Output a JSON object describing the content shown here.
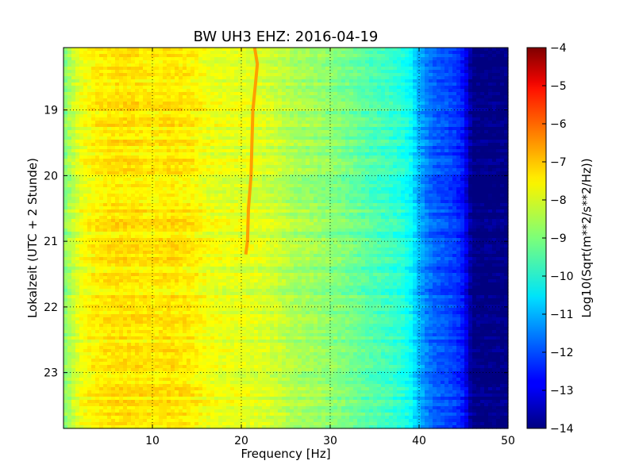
{
  "chart_data": {
    "type": "heatmap",
    "title": "BW UH3 EHZ: 2016-04-19",
    "xlabel": "Frequency [Hz]",
    "ylabel": "Lokalzeit (UTC + 2 Stunde)",
    "xlim": [
      0,
      50
    ],
    "ylim": [
      18.05,
      23.85
    ],
    "x_ticks": [
      10,
      20,
      30,
      40,
      50
    ],
    "x_tick_labels": [
      "10",
      "20",
      "30",
      "40",
      "50"
    ],
    "y_ticks": [
      19,
      20,
      21,
      22,
      23
    ],
    "y_tick_labels": [
      "19",
      "20",
      "21",
      "22",
      "23"
    ],
    "y_inverted": true,
    "grid": true,
    "colormap": "jet",
    "colorbar": {
      "label": "Log10(Sqrt(m**2/s**2/Hz))",
      "min": -14,
      "max": -4,
      "ticks": [
        -4,
        -5,
        -6,
        -7,
        -8,
        -9,
        -10,
        -11,
        -12,
        -13,
        -14
      ],
      "tick_labels": [
        "−4",
        "−5",
        "−6",
        "−7",
        "−8",
        "−9",
        "−10",
        "−11",
        "−12",
        "−13",
        "−14"
      ]
    },
    "spectral_profile": {
      "frequency_hz": [
        0,
        1,
        2,
        4,
        6,
        8,
        10,
        12,
        14,
        15,
        16,
        18,
        20,
        22,
        24,
        26,
        28,
        30,
        32,
        34,
        36,
        38,
        39,
        40,
        41,
        42,
        43,
        44,
        45,
        46,
        50
      ],
      "level_log10": [
        -9.0,
        -8.4,
        -7.9,
        -7.6,
        -7.5,
        -7.5,
        -7.6,
        -7.5,
        -7.6,
        -7.7,
        -7.9,
        -8.0,
        -8.0,
        -8.1,
        -8.3,
        -8.6,
        -8.7,
        -8.9,
        -9.1,
        -9.4,
        -9.6,
        -9.9,
        -10.2,
        -11.0,
        -11.6,
        -11.9,
        -12.0,
        -12.2,
        -12.6,
        -14.0,
        -14.0
      ]
    },
    "spectral_line": {
      "note_hz_start": 21.7,
      "time_hours": [
        18.05,
        18.3,
        18.6,
        19.0,
        19.5,
        20.0,
        20.5,
        21.0,
        21.2
      ],
      "frequency_hz": [
        21.5,
        21.8,
        21.6,
        21.3,
        21.2,
        21.1,
        20.8,
        20.7,
        20.5
      ],
      "level_log10": -6.8
    }
  }
}
